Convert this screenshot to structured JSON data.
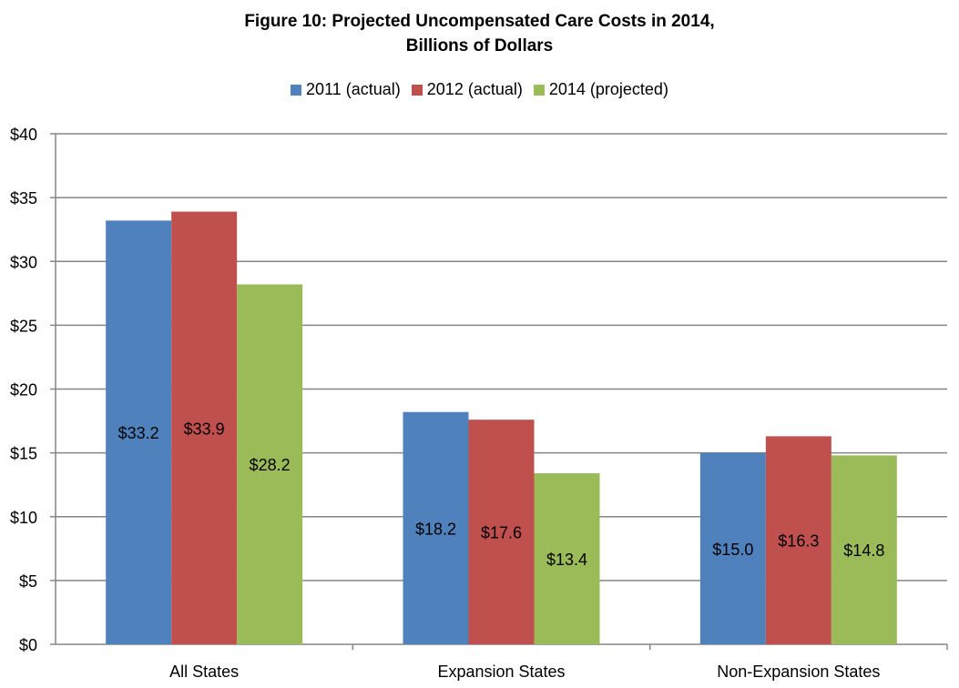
{
  "chart_data": {
    "type": "bar",
    "title": "Figure 10: Projected Uncompensated Care Costs in 2014,",
    "subtitle": "Billions of Dollars",
    "categories": [
      "All States",
      "Expansion States",
      "Non-Expansion States"
    ],
    "series": [
      {
        "name": "2011 (actual)",
        "color": "#4F81BD",
        "values": [
          33.2,
          18.2,
          15.0
        ],
        "labels": [
          "$33.2",
          "$18.2",
          "$15.0"
        ]
      },
      {
        "name": "2012 (actual)",
        "color": "#C0504D",
        "values": [
          33.9,
          17.6,
          16.3
        ],
        "labels": [
          "$33.9",
          "$17.6",
          "$16.3"
        ]
      },
      {
        "name": "2014 (projected)",
        "color": "#9BBB59",
        "values": [
          28.2,
          13.4,
          14.8
        ],
        "labels": [
          "$28.2",
          "$13.4",
          "$14.8"
        ]
      }
    ],
    "ylim": [
      0,
      40
    ],
    "yticks": [
      0,
      5,
      10,
      15,
      20,
      25,
      30,
      35,
      40
    ],
    "ytick_labels": [
      "$0",
      "$5",
      "$10",
      "$15",
      "$20",
      "$25",
      "$30",
      "$35",
      "$40"
    ],
    "grid": true,
    "legend": "top",
    "xlabel": "",
    "ylabel": ""
  }
}
